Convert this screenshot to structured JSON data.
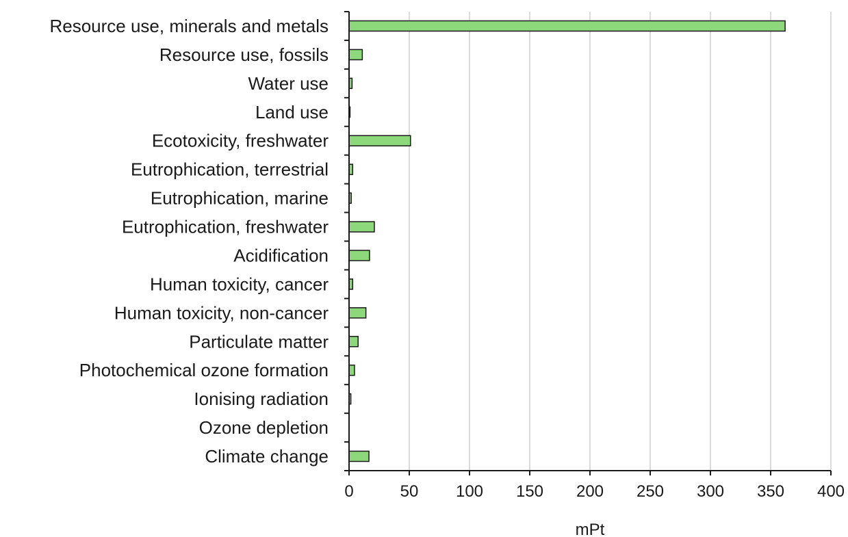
{
  "chart_data": {
    "type": "bar",
    "orientation": "horizontal",
    "categories": [
      "Resource use, minerals and metals",
      "Resource use, fossils",
      "Water use",
      "Land use",
      "Ecotoxicity, freshwater",
      "Eutrophication, terrestrial",
      "Eutrophication, marine",
      "Eutrophication, freshwater",
      "Acidification",
      "Human toxicity, cancer",
      "Human toxicity, non-cancer",
      "Particulate matter",
      "Photochemical ozone formation",
      "Ionising radiation",
      "Ozone depletion",
      "Climate change"
    ],
    "values": [
      362,
      11,
      2.5,
      0.8,
      51,
      3,
      1.8,
      21,
      17,
      3,
      14,
      7.5,
      4.5,
      1.5,
      0.1,
      16.5
    ],
    "xlabel": "mPt",
    "ylabel": "",
    "xlim": [
      0,
      400
    ],
    "xticks": [
      0,
      50,
      100,
      150,
      200,
      250,
      300,
      350,
      400
    ],
    "grid": "vertical",
    "legend": "none",
    "bar_color": "#8cd87b",
    "bar_edge_color": "#1a1a1a",
    "grid_color": "#d0d0d0"
  }
}
